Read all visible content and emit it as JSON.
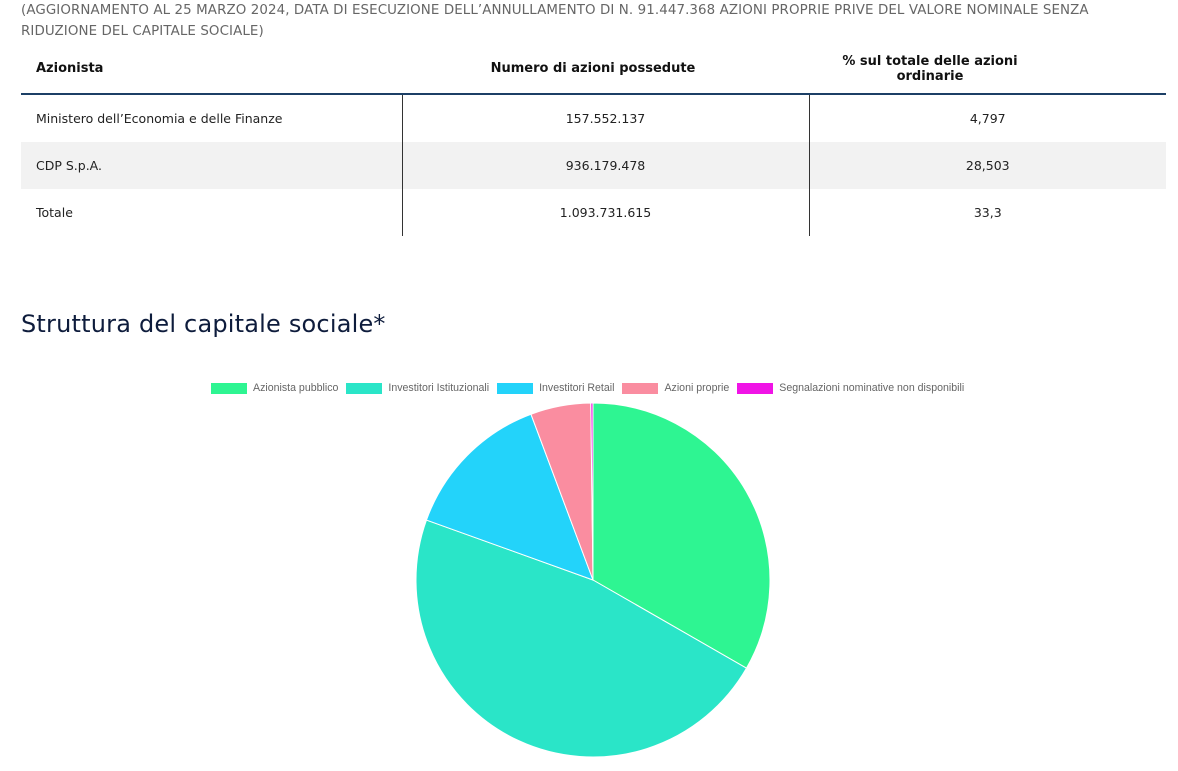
{
  "note": "(AGGIORNAMENTO AL 25 MARZO 2024, DATA DI ESECUZIONE DELL’ANNULLAMENTO DI N. 91.447.368 AZIONI PROPRIE PRIVE DEL VALORE NOMINALE SENZA RIDUZIONE DEL CAPITALE SOCIALE)",
  "table": {
    "headers": [
      "Azionista",
      "Numero di azioni possedute",
      "% sul totale delle azioni ordinarie"
    ],
    "rows": [
      [
        "Ministero dell’Economia e delle Finanze",
        "157.552.137",
        "4,797"
      ],
      [
        "CDP S.p.A.",
        "936.179.478",
        "28,503"
      ],
      [
        "Totale",
        "1.093.731.615",
        "33,3"
      ]
    ]
  },
  "section_title": "Struttura del capitale sociale*",
  "chart_data": {
    "type": "pie",
    "title": "",
    "legend_position": "top",
    "labels": [
      "Azionista pubblico",
      "Investitori Istituzionali",
      "Investitori Retail",
      "Azioni proprie",
      "Segnalazioni nominative non disponibili"
    ],
    "values": [
      33.3,
      47.2,
      13.8,
      5.5,
      0.2
    ],
    "colors": [
      "#2ef592",
      "#2ae5c8",
      "#23d3fa",
      "#fa8da0",
      "#f014e6"
    ]
  }
}
